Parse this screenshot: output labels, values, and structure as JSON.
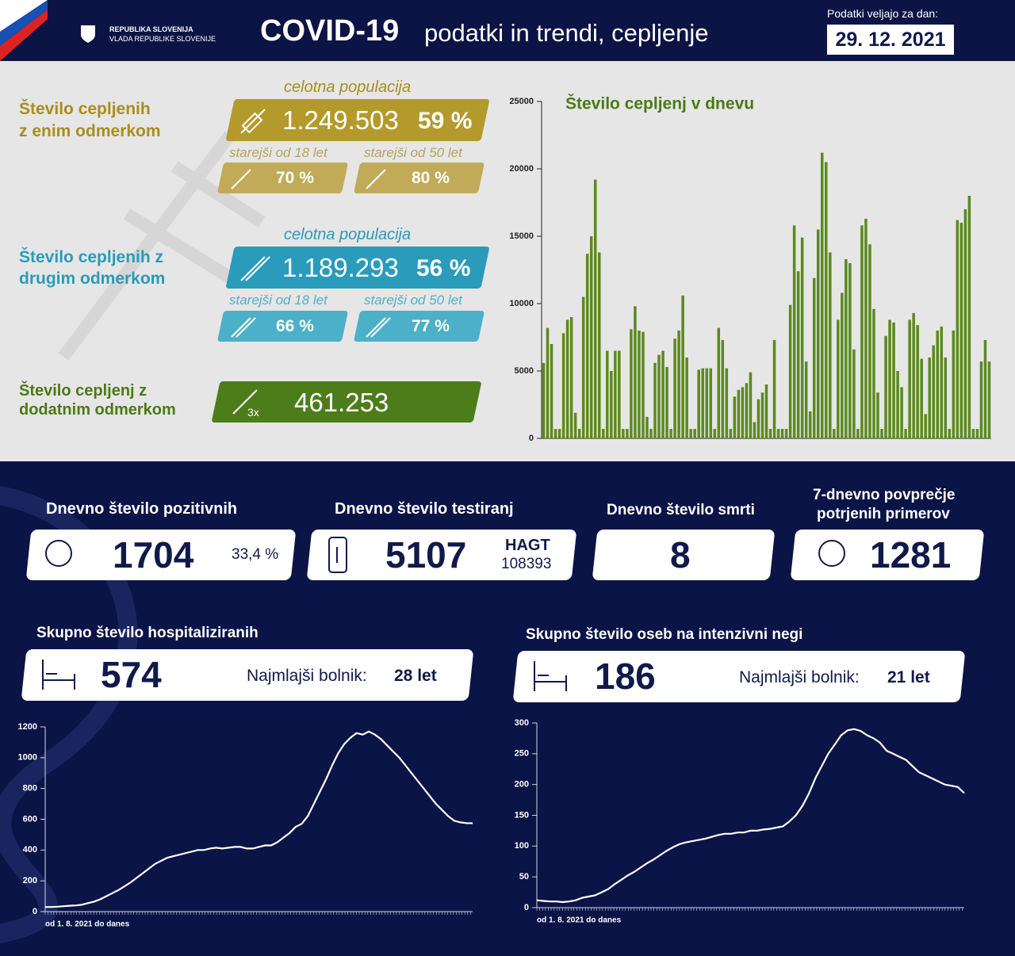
{
  "header": {
    "org_line1": "REPUBLIKA SLOVENIJA",
    "org_line2": "VLADA REPUBLIKE SLOVENIJE",
    "title_bold": "COVID-19",
    "title_rest": "podatki in trendi, cepljenje",
    "date_label": "Podatki veljajo za dan:",
    "date": "29. 12. 2021"
  },
  "vaccination": {
    "dose1": {
      "label_line1": "Število cepljenih",
      "label_line2": "z enim odmerkom",
      "total_label": "celotna populacija",
      "count": "1.249.503",
      "percent": "59 %",
      "adults_label": "starejši od 18 let",
      "adults_percent": "70 %",
      "over50_label": "starejši od 50 let",
      "over50_percent": "80 %"
    },
    "dose2": {
      "label_line1": "Število cepljenih z",
      "label_line2": "drugim odmerkom",
      "total_label": "celotna populacija",
      "count": "1.189.293",
      "percent": "56 %",
      "adults_label": "starejši od 18 let",
      "adults_percent": "66 %",
      "over50_label": "starejši od 50 let",
      "over50_percent": "77 %"
    },
    "booster": {
      "label_line1": "Število cepljenj z",
      "label_line2": "dodatnim odmerkom",
      "multiplier": "3x",
      "count": "461.253"
    }
  },
  "stats": {
    "positives": {
      "title": "Dnevno število pozitivnih",
      "value": "1704",
      "share": "33,4 %"
    },
    "tests": {
      "title": "Dnevno število testiranj",
      "value": "5107",
      "hagt_label": "HAGT",
      "hagt_value": "108393"
    },
    "deaths": {
      "title": "Dnevno število smrti",
      "value": "8"
    },
    "average": {
      "title_line1": "7-dnevno povprečje",
      "title_line2": "potrjenih primerov",
      "value": "1281"
    }
  },
  "hospital": {
    "title": "Skupno število hospitaliziranih",
    "value": "574",
    "youngest_label": "Najmlajši bolnik:",
    "youngest_age": "28 let"
  },
  "icu": {
    "title": "Skupno število oseb na intenzivni negi",
    "value": "186",
    "youngest_label": "Najmlajši bolnik:",
    "youngest_age": "21 let"
  },
  "chart_data": [
    {
      "type": "bar",
      "title": "Število cepljenj v dnevu",
      "color": "#5b8a1f",
      "ylim": [
        0,
        25000
      ],
      "yticks": [
        0,
        5000,
        10000,
        15000,
        20000,
        25000
      ],
      "values": [
        5600,
        8200,
        7000,
        700,
        700,
        7800,
        8800,
        9000,
        1900,
        700,
        10500,
        13700,
        15000,
        19200,
        13800,
        700,
        6500,
        5000,
        6500,
        6500,
        700,
        700,
        8100,
        9800,
        8000,
        7900,
        1600,
        700,
        5600,
        6200,
        6500,
        5300,
        700,
        7400,
        8000,
        10600,
        6000,
        700,
        700,
        5100,
        5200,
        5200,
        5200,
        700,
        8200,
        7300,
        5200,
        700,
        3100,
        3600,
        3800,
        4100,
        4900,
        1200,
        2900,
        3400,
        4000,
        700,
        7300,
        700,
        700,
        700,
        9900,
        15800,
        12400,
        14900,
        5700,
        2000,
        11900,
        15500,
        21200,
        20500,
        13800,
        700,
        8800,
        10800,
        13300,
        13000,
        6600,
        700,
        15800,
        16300,
        14400,
        9600,
        3400,
        700,
        7600,
        8800,
        8600,
        5000,
        3800,
        700,
        8800,
        9300,
        8400,
        5900,
        1800,
        6000,
        6900,
        8000,
        8300,
        6000,
        700,
        8000,
        16200,
        16000,
        17000,
        18000,
        700,
        700,
        5700,
        7300,
        5700
      ]
    },
    {
      "type": "line",
      "color": "#ffffff",
      "x_label": "od 1. 8. 2021 do danes",
      "ylim": [
        0,
        1200
      ],
      "yticks": [
        0,
        200,
        400,
        600,
        800,
        1000,
        1200
      ],
      "values": [
        30,
        30,
        32,
        35,
        38,
        40,
        45,
        55,
        65,
        80,
        100,
        120,
        140,
        165,
        190,
        220,
        250,
        280,
        310,
        330,
        350,
        360,
        370,
        380,
        390,
        400,
        400,
        410,
        415,
        410,
        415,
        420,
        420,
        410,
        410,
        420,
        430,
        430,
        450,
        480,
        510,
        550,
        570,
        620,
        700,
        780,
        860,
        950,
        1030,
        1090,
        1130,
        1160,
        1150,
        1170,
        1150,
        1120,
        1080,
        1040,
        1000,
        950,
        900,
        850,
        800,
        750,
        700,
        660,
        620,
        590,
        580,
        575,
        574
      ]
    },
    {
      "type": "line",
      "color": "#ffffff",
      "x_label": "od 1. 8. 2021 do danes",
      "ylim": [
        0,
        300
      ],
      "yticks": [
        0,
        50,
        100,
        150,
        200,
        250,
        300
      ],
      "values": [
        12,
        11,
        10,
        10,
        9,
        10,
        12,
        16,
        18,
        20,
        25,
        30,
        38,
        45,
        52,
        58,
        65,
        72,
        78,
        85,
        92,
        98,
        103,
        106,
        108,
        110,
        112,
        115,
        118,
        120,
        120,
        122,
        122,
        125,
        125,
        127,
        128,
        130,
        132,
        140,
        150,
        165,
        185,
        210,
        230,
        250,
        265,
        280,
        288,
        290,
        287,
        280,
        275,
        268,
        255,
        250,
        245,
        240,
        230,
        220,
        215,
        210,
        205,
        200,
        198,
        196,
        186
      ]
    }
  ]
}
